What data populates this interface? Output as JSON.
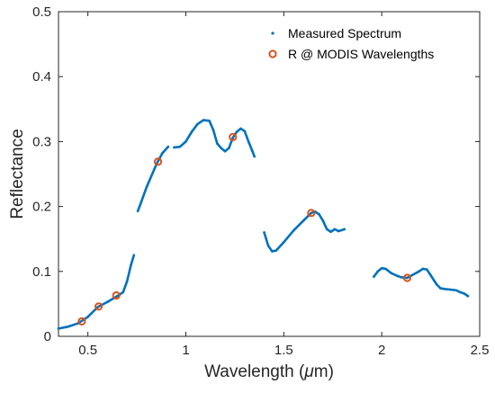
{
  "chart_data": {
    "type": "line",
    "title": "",
    "xlabel": "Wavelength (",
    "xlabel_symbol": "μ",
    "xlabel_unit": "m)",
    "ylabel": "Reflectance",
    "xlim": [
      0.35,
      2.5
    ],
    "ylim": [
      0,
      0.5
    ],
    "xticks": [
      0.5,
      1,
      1.5,
      2,
      2.5
    ],
    "xtick_labels": [
      "0.5",
      "1",
      "1.5",
      "2",
      "2.5"
    ],
    "yticks": [
      0,
      0.1,
      0.2,
      0.3,
      0.4,
      0.5
    ],
    "ytick_labels": [
      "0",
      "0.1",
      "0.2",
      "0.3",
      "0.4",
      "0.5"
    ],
    "grid": false,
    "legend_position": "top-right",
    "colors": {
      "spectrum": "#0072BD",
      "modis": "#D95319",
      "axis": "#262626"
    },
    "series": [
      {
        "name": "Measured Spectrum",
        "style": "points",
        "segments": [
          [
            [
              0.35,
              0.012
            ],
            [
              0.4,
              0.015
            ],
            [
              0.45,
              0.02
            ],
            [
              0.5,
              0.03
            ],
            [
              0.55,
              0.045
            ],
            [
              0.6,
              0.053
            ],
            [
              0.65,
              0.062
            ],
            [
              0.68,
              0.068
            ],
            [
              0.7,
              0.085
            ],
            [
              0.72,
              0.11
            ],
            [
              0.735,
              0.125
            ]
          ],
          [
            [
              0.755,
              0.193
            ],
            [
              0.77,
              0.205
            ],
            [
              0.8,
              0.23
            ],
            [
              0.85,
              0.265
            ],
            [
              0.88,
              0.282
            ],
            [
              0.91,
              0.292
            ]
          ],
          [
            [
              0.94,
              0.291
            ],
            [
              0.97,
              0.292
            ],
            [
              1.0,
              0.3
            ],
            [
              1.03,
              0.315
            ],
            [
              1.06,
              0.327
            ],
            [
              1.09,
              0.333
            ],
            [
              1.12,
              0.332
            ],
            [
              1.14,
              0.318
            ],
            [
              1.16,
              0.297
            ],
            [
              1.18,
              0.29
            ],
            [
              1.2,
              0.285
            ],
            [
              1.22,
              0.29
            ],
            [
              1.24,
              0.306
            ],
            [
              1.26,
              0.315
            ],
            [
              1.28,
              0.32
            ],
            [
              1.3,
              0.316
            ],
            [
              1.32,
              0.3
            ],
            [
              1.34,
              0.285
            ],
            [
              1.35,
              0.277
            ]
          ],
          [
            [
              1.4,
              0.16
            ],
            [
              1.42,
              0.14
            ],
            [
              1.44,
              0.131
            ],
            [
              1.46,
              0.132
            ],
            [
              1.5,
              0.145
            ],
            [
              1.55,
              0.163
            ],
            [
              1.6,
              0.178
            ],
            [
              1.64,
              0.19
            ],
            [
              1.66,
              0.192
            ],
            [
              1.68,
              0.188
            ],
            [
              1.7,
              0.178
            ],
            [
              1.72,
              0.165
            ],
            [
              1.74,
              0.161
            ],
            [
              1.76,
              0.165
            ],
            [
              1.78,
              0.162
            ],
            [
              1.81,
              0.165
            ]
          ],
          [
            [
              1.96,
              0.092
            ],
            [
              1.98,
              0.1
            ],
            [
              2.0,
              0.105
            ],
            [
              2.02,
              0.104
            ],
            [
              2.05,
              0.097
            ],
            [
              2.08,
              0.093
            ],
            [
              2.1,
              0.091
            ],
            [
              2.13,
              0.09
            ],
            [
              2.16,
              0.095
            ],
            [
              2.19,
              0.1
            ],
            [
              2.21,
              0.104
            ],
            [
              2.23,
              0.103
            ],
            [
              2.25,
              0.094
            ],
            [
              2.28,
              0.08
            ],
            [
              2.3,
              0.074
            ],
            [
              2.32,
              0.073
            ],
            [
              2.35,
              0.072
            ],
            [
              2.38,
              0.071
            ],
            [
              2.4,
              0.068
            ],
            [
              2.42,
              0.066
            ],
            [
              2.44,
              0.062
            ]
          ]
        ]
      },
      {
        "name": "R @ MODIS Wavelengths",
        "style": "markers",
        "points": [
          [
            0.469,
            0.023
          ],
          [
            0.555,
            0.046
          ],
          [
            0.645,
            0.063
          ],
          [
            0.858,
            0.269
          ],
          [
            1.24,
            0.307
          ],
          [
            1.64,
            0.19
          ],
          [
            2.13,
            0.09
          ]
        ]
      }
    ]
  }
}
